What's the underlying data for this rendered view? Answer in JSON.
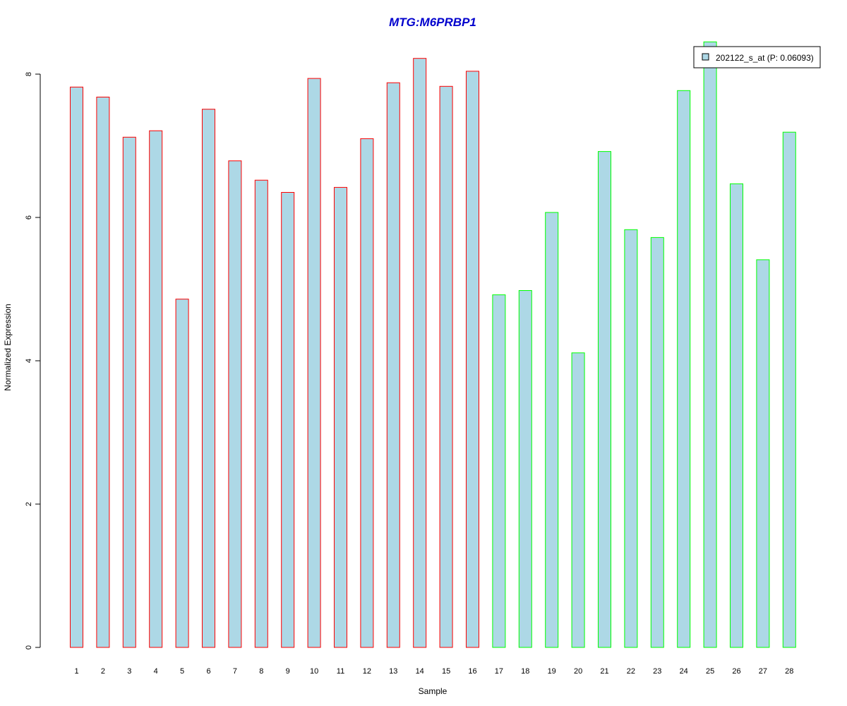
{
  "chart_data": {
    "type": "bar",
    "title": "MTG:M6PRBP1",
    "xlabel": "Sample",
    "ylabel": "Normalized Expression",
    "ylim": [
      0,
      8.5
    ],
    "y_ticks": [
      0,
      2,
      4,
      6,
      8
    ],
    "grid": false,
    "legend_position": "top-right",
    "categories": [
      "1",
      "2",
      "3",
      "4",
      "5",
      "6",
      "7",
      "8",
      "9",
      "10",
      "11",
      "12",
      "13",
      "14",
      "15",
      "16",
      "17",
      "18",
      "19",
      "20",
      "21",
      "22",
      "23",
      "24",
      "25",
      "26",
      "27",
      "28"
    ],
    "series": [
      {
        "name": "202122_s_at (P: 0.06093)",
        "values": [
          7.82,
          7.68,
          7.12,
          7.21,
          4.86,
          7.51,
          6.79,
          6.52,
          6.35,
          7.94,
          6.42,
          7.1,
          7.88,
          8.22,
          7.83,
          8.04,
          4.92,
          4.98,
          6.07,
          4.11,
          6.92,
          5.83,
          5.72,
          7.77,
          8.45,
          6.47,
          5.41,
          7.19
        ],
        "fill_color": "#add8e6",
        "border_colors": [
          "#ff0000",
          "#ff0000",
          "#ff0000",
          "#ff0000",
          "#ff0000",
          "#ff0000",
          "#ff0000",
          "#ff0000",
          "#ff0000",
          "#ff0000",
          "#ff0000",
          "#ff0000",
          "#ff0000",
          "#ff0000",
          "#ff0000",
          "#ff0000",
          "#00ff00",
          "#00ff00",
          "#00ff00",
          "#00ff00",
          "#00ff00",
          "#00ff00",
          "#00ff00",
          "#00ff00",
          "#00ff00",
          "#00ff00",
          "#00ff00",
          "#00ff00"
        ]
      }
    ],
    "title_color": "#0000cd"
  }
}
